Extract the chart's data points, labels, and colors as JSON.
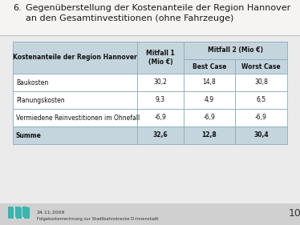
{
  "title_num": "6.",
  "title_text": "Gegenüberstellung der Kostenanteile der Region Hannover\nan den Gesamtinvestitionen (ohne Fahrzeuge)",
  "header_col1": "Kostenanteile der Region Hannover",
  "header_col2": "Mitfall 1\n(Mio €)",
  "header_col3_main": "Mitfall 2 (Mio €)",
  "header_col3a": "Best Case",
  "header_col3b": "Worst Case",
  "rows": [
    {
      "label": "Baukosten",
      "v1": "30,2",
      "v2": "14,8",
      "v3": "30,8",
      "bold": false
    },
    {
      "label": "Planungskosten",
      "v1": "9,3",
      "v2": "4,9",
      "v3": "6,5",
      "bold": false
    },
    {
      "label": "Vermiedene Reinvestitionen im Ohnefall",
      "v1": "-6,9",
      "v2": "-6,9",
      "v3": "-6,9",
      "bold": false
    },
    {
      "label": "Summe",
      "v1": "32,6",
      "v2": "12,8",
      "v3": "30,4",
      "bold": true
    }
  ],
  "footer_date": "24.11.2009",
  "footer_sub": "Folgekostenrechnung zur Stadtbahnstrecke D-Innenstadt",
  "footer_page": "10",
  "bg_color": "#ebebeb",
  "header_bg": "#c5d5de",
  "table_border_color": "#8aabba",
  "summe_bg": "#c5d5de",
  "footer_bg": "#d0d0d0",
  "text_color": "#1a1a1a",
  "logo_colors": [
    "#3ab0b0",
    "#3ab0b0",
    "#3ab0b0"
  ]
}
